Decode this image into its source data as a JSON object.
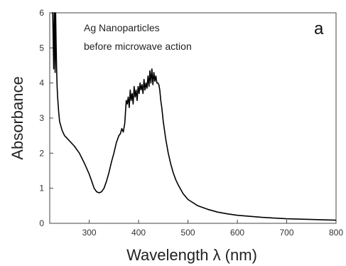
{
  "chart_data": {
    "type": "line",
    "title": "",
    "panel_label": "a",
    "annotation": [
      "Ag Nanoparticles",
      "before microwave action"
    ],
    "xlabel": "Wavelength λ  (nm)",
    "ylabel": "Absorbance",
    "xlim": [
      220,
      800
    ],
    "ylim": [
      0,
      6
    ],
    "xticks": [
      "300",
      "400",
      "500",
      "600",
      "700",
      "800"
    ],
    "yticks": [
      "0",
      "1",
      "2",
      "3",
      "4",
      "5",
      "6"
    ],
    "grid": false,
    "legend": "none",
    "line_color": "#000000",
    "series": [
      {
        "x": [
          224,
          226,
          228,
          229,
          230,
          231,
          232,
          233,
          234,
          235,
          236,
          238,
          240,
          245,
          250,
          260,
          270,
          280,
          290,
          300,
          305,
          310,
          315,
          320,
          325,
          330,
          335,
          340,
          345,
          350,
          355,
          360,
          363,
          366,
          369,
          372,
          375,
          377,
          379,
          381,
          383,
          385,
          387,
          389,
          391,
          393,
          395,
          397,
          399,
          401,
          403,
          405,
          407,
          409,
          411,
          413,
          415,
          417,
          419,
          421,
          423,
          425,
          427,
          429,
          431,
          433,
          435,
          437,
          439,
          441,
          443,
          445,
          447,
          450,
          455,
          460,
          465,
          470,
          475,
          480,
          490,
          500,
          520,
          540,
          560,
          580,
          600,
          650,
          700,
          750,
          800
        ],
        "y": [
          6.0,
          6.0,
          4.4,
          6.0,
          6.0,
          4.3,
          6.0,
          5.1,
          4.4,
          3.9,
          3.6,
          3.2,
          2.9,
          2.65,
          2.5,
          2.35,
          2.2,
          2.0,
          1.72,
          1.4,
          1.2,
          1.0,
          0.9,
          0.87,
          0.9,
          1.0,
          1.2,
          1.45,
          1.75,
          2.0,
          2.3,
          2.5,
          2.55,
          2.7,
          2.6,
          2.85,
          3.5,
          3.4,
          3.6,
          3.3,
          3.8,
          3.5,
          3.7,
          3.4,
          3.9,
          3.6,
          3.8,
          3.5,
          3.9,
          3.7,
          4.0,
          3.8,
          3.95,
          3.7,
          4.1,
          3.8,
          4.0,
          3.85,
          4.2,
          3.9,
          4.35,
          4.0,
          4.4,
          3.95,
          4.3,
          4.05,
          4.2,
          4.0,
          4.0,
          3.95,
          3.8,
          3.5,
          3.3,
          2.9,
          2.4,
          2.0,
          1.7,
          1.45,
          1.25,
          1.1,
          0.85,
          0.68,
          0.5,
          0.4,
          0.32,
          0.27,
          0.23,
          0.17,
          0.13,
          0.11,
          0.09
        ]
      }
    ]
  }
}
